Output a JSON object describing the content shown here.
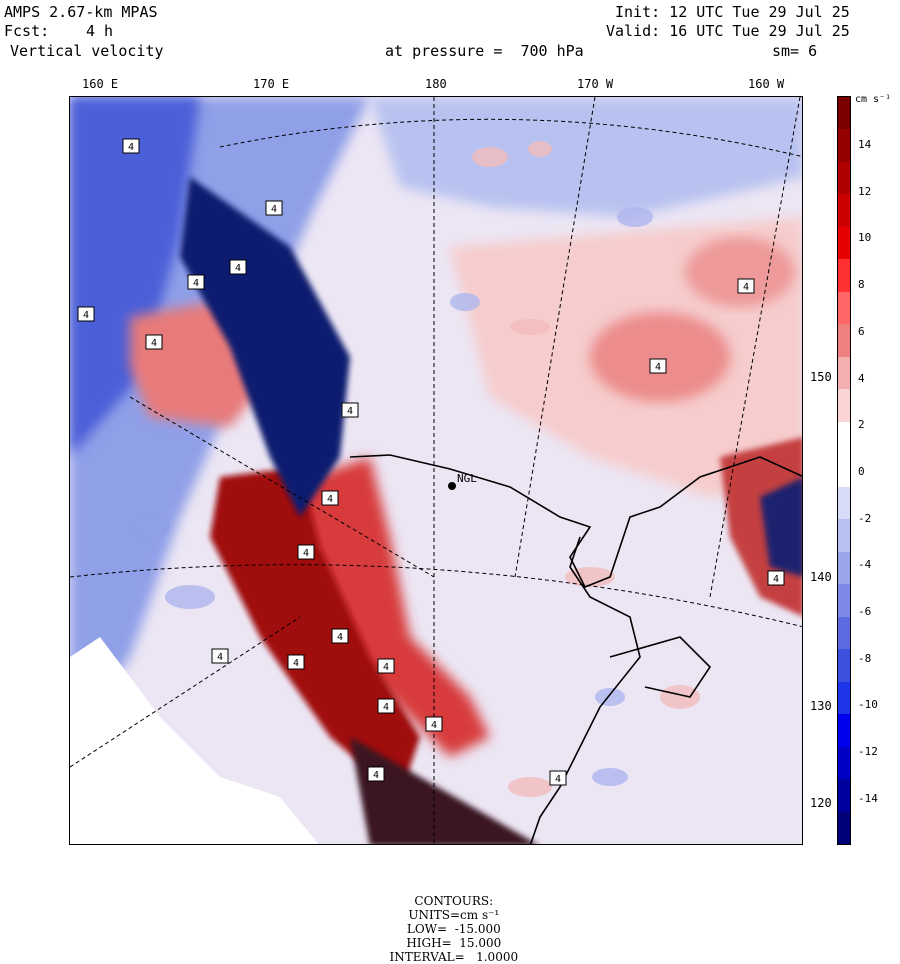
{
  "header": {
    "model": "AMPS 2.67-km MPAS",
    "init": "Init: 12 UTC Tue 29 Jul 25",
    "fcst_label": "Fcst:",
    "fcst_value": "4 h",
    "valid": "Valid: 16 UTC Tue 29 Jul 25",
    "field": "Vertical velocity",
    "level": "at pressure =  700 hPa",
    "smooth": "sm= 6"
  },
  "longitude_labels": [
    "160 E",
    "170 E",
    "180",
    "170 W",
    "160 W"
  ],
  "latitude_labels": [
    "150 W",
    "140 W",
    "130 W",
    "120 W"
  ],
  "station": {
    "label": "NGL"
  },
  "colorbar": {
    "units": "cm s⁻¹",
    "tick_labels": [
      "14",
      "12",
      "10",
      "8",
      "6",
      "4",
      "2",
      "0",
      "-2",
      "-4",
      "-6",
      "-8",
      "-10",
      "-12",
      "-14"
    ],
    "colors": [
      "#7a0000",
      "#960000",
      "#b00000",
      "#cc0000",
      "#e60000",
      "#ff3030",
      "#ff6666",
      "#f08080",
      "#f4b0b0",
      "#fad4d4",
      "#ffffff",
      "#ffffff",
      "#d8dcf8",
      "#b8c0f0",
      "#9aa4ea",
      "#7c88e4",
      "#5c6ce0",
      "#3c50e0",
      "#1e34e8",
      "#0000ee",
      "#0000c4",
      "#00009c",
      "#000078"
    ]
  },
  "map_marker_label": "4",
  "footer": {
    "contours_label": "CONTOURS:",
    "units": "UNITS=cm s⁻¹",
    "low": "LOW=  -15.000",
    "high": "HIGH=  15.000",
    "interval": "INTERVAL=   1.0000"
  }
}
